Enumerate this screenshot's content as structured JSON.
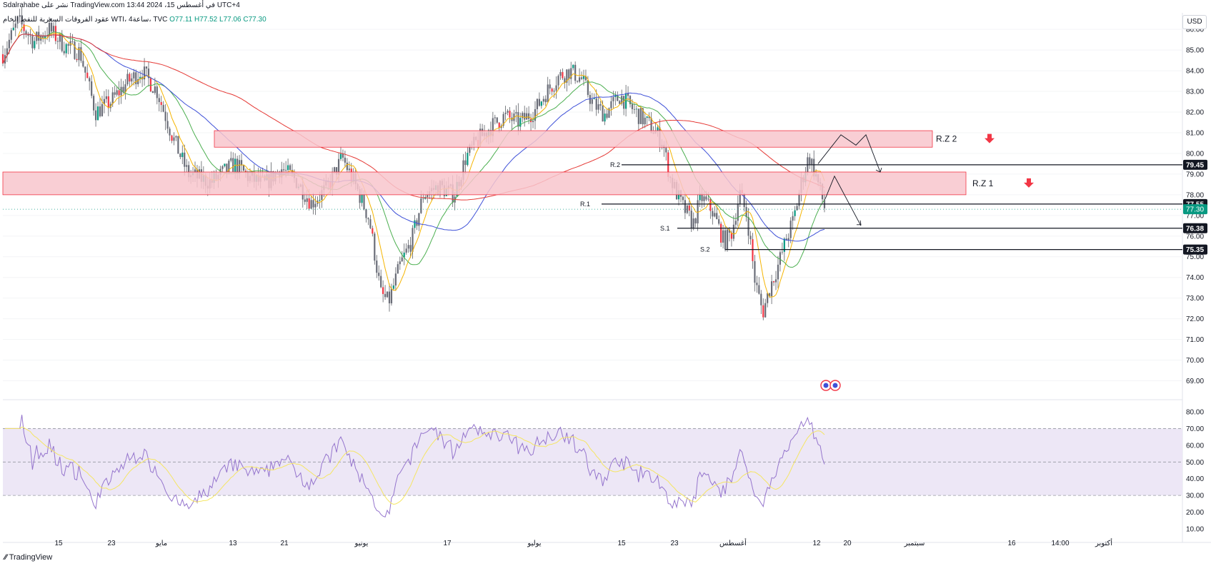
{
  "header": {
    "published": "Sdalrahabe نشر على TradingView.com في أغسطس 15، 2024 13:44 UTC+4",
    "symbol": "عقود الفروقات السعرية للنفط الخام WTI، ساعة4، TVC",
    "ohlc": {
      "O": "O77.11",
      "H": "H77.52",
      "L": "L77.06",
      "C": "C77.30"
    }
  },
  "currency_button": "USD",
  "brand": "TradingView",
  "colors": {
    "up": "#089981",
    "down": "#f23645",
    "candle": "#5d6066",
    "zone": "#f8c6cc",
    "zone_border": "#f23645",
    "ma_fast": "#f5b400",
    "ma_mid": "#4caf50",
    "ma_slow": "#3f51d8",
    "ma_long": "#e53935",
    "rsi": "#9575cd",
    "rsi_band": "#ede7f6",
    "rsi_ma": "#f5e663"
  },
  "chart_data": {
    "type": "candlestick",
    "timeframe": "4h",
    "y_axis": {
      "min": 68.5,
      "max": 86.8,
      "ticks": [
        "86.00",
        "85.00",
        "84.00",
        "83.00",
        "82.00",
        "81.00",
        "80.00",
        "79.00",
        "78.00",
        "77.00",
        "76.00",
        "75.00",
        "74.00",
        "73.00",
        "72.00",
        "71.00",
        "70.00",
        "69.00"
      ]
    },
    "x_axis": {
      "labels": [
        "15",
        "23",
        "مايو",
        "13",
        "21",
        "يونيو",
        "17",
        "يوليو",
        "15",
        "23",
        "أغسطس",
        "12",
        "20",
        "سبتمبر",
        "16",
        "14:00",
        "أكتوبر"
      ]
    },
    "price_path": [
      [
        0,
        84.8
      ],
      [
        20,
        86.4
      ],
      [
        40,
        85.4
      ],
      [
        60,
        86.0
      ],
      [
        80,
        85.2
      ],
      [
        100,
        84.9
      ],
      [
        120,
        82.0
      ],
      [
        140,
        82.5
      ],
      [
        160,
        83.4
      ],
      [
        180,
        84.0
      ],
      [
        200,
        83.0
      ],
      [
        220,
        80.8
      ],
      [
        240,
        79.0
      ],
      [
        270,
        78.6
      ],
      [
        300,
        79.5
      ],
      [
        320,
        78.8
      ],
      [
        340,
        78.5
      ],
      [
        360,
        79.3
      ],
      [
        380,
        78.7
      ],
      [
        400,
        77.6
      ],
      [
        420,
        78.3
      ],
      [
        440,
        79.8
      ],
      [
        460,
        78.2
      ],
      [
        475,
        76.8
      ],
      [
        490,
        73.2
      ],
      [
        500,
        72.8
      ],
      [
        515,
        74.6
      ],
      [
        530,
        75.8
      ],
      [
        545,
        78.0
      ],
      [
        565,
        78.4
      ],
      [
        585,
        78.0
      ],
      [
        600,
        79.8
      ],
      [
        615,
        80.6
      ],
      [
        630,
        81.2
      ],
      [
        650,
        81.8
      ],
      [
        670,
        81.5
      ],
      [
        690,
        82.1
      ],
      [
        705,
        83.0
      ],
      [
        720,
        83.7
      ],
      [
        735,
        84.0
      ],
      [
        750,
        83.6
      ],
      [
        765,
        82.4
      ],
      [
        780,
        81.9
      ],
      [
        800,
        82.8
      ],
      [
        820,
        82.0
      ],
      [
        840,
        81.3
      ],
      [
        855,
        80.6
      ],
      [
        865,
        78.8
      ],
      [
        880,
        77.5
      ],
      [
        895,
        76.6
      ],
      [
        905,
        77.9
      ],
      [
        920,
        77.2
      ],
      [
        935,
        75.7
      ],
      [
        945,
        76.2
      ],
      [
        955,
        78.1
      ],
      [
        965,
        76.9
      ],
      [
        975,
        73.8
      ],
      [
        985,
        72.3
      ],
      [
        995,
        73.6
      ],
      [
        1005,
        74.6
      ],
      [
        1015,
        75.8
      ],
      [
        1025,
        76.8
      ],
      [
        1035,
        78.6
      ],
      [
        1045,
        79.9
      ],
      [
        1055,
        78.8
      ],
      [
        1065,
        77.4
      ]
    ],
    "last_price": "77.30",
    "zones": [
      {
        "name": "R.Z 2",
        "low": 80.3,
        "high": 81.1
      },
      {
        "name": "R.Z 1",
        "low": 78.0,
        "high": 79.1
      }
    ],
    "levels": [
      {
        "name": "R.2",
        "value": "79.45"
      },
      {
        "name": "R.1",
        "value": "77.55"
      },
      {
        "name": "S.1",
        "value": "76.38"
      },
      {
        "name": "S.2",
        "value": "75.35"
      }
    ],
    "rsi": {
      "ticks": [
        "80.00",
        "70.00",
        "60.00",
        "50.00",
        "40.00",
        "30.00",
        "20.00",
        "10.00"
      ],
      "min": 7,
      "max": 83,
      "band": [
        30,
        70
      ],
      "mid": 50
    }
  }
}
